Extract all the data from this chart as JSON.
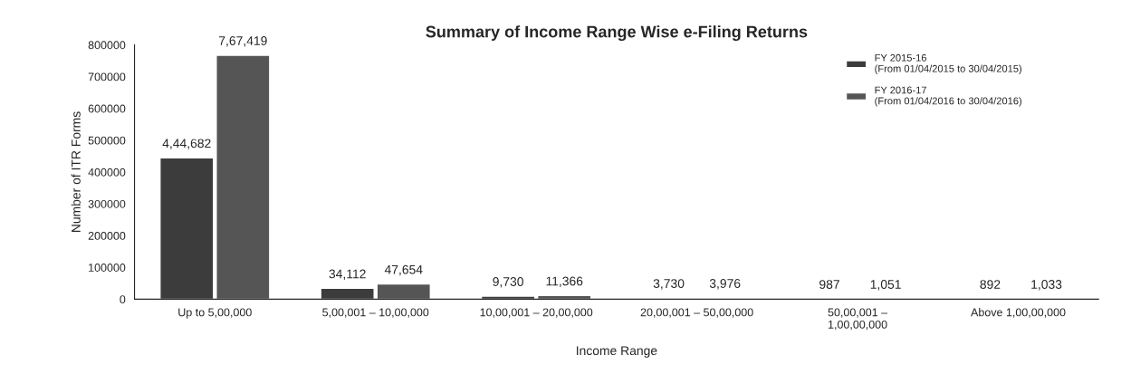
{
  "chart_data": {
    "type": "bar",
    "title": "Summary of Income Range Wise e-Filing Returns",
    "xlabel": "Income Range",
    "ylabel": "Number of ITR Forms",
    "categories": [
      "Up to 5,00,000",
      "5,00,001 – 10,00,000",
      "10,00,001 – 20,00,000",
      "20,00,001 – 50,00,000",
      "50,00,001 –\n1,00,00,000",
      "Above 1,00,00,000"
    ],
    "series": [
      {
        "name": "FY 2015-16\n(From 01/04/2015 to 30/04/2015)",
        "color": "#3c3c3c",
        "values": [
          444682,
          34112,
          9730,
          3730,
          987,
          892
        ],
        "value_labels": [
          "4,44,682",
          "34,112",
          "9,730",
          "3,730",
          "987",
          "892"
        ]
      },
      {
        "name": "FY 2016-17\n(From 01/04/2016 to 30/04/2016)",
        "color": "#555555",
        "values": [
          767419,
          47654,
          11366,
          3976,
          1051,
          1033
        ],
        "value_labels": [
          "7,67,419",
          "47,654",
          "11,366",
          "3,976",
          "1,051",
          "1,033"
        ]
      }
    ],
    "ylim": [
      0,
      800000
    ],
    "yticks": [
      0,
      100000,
      200000,
      300000,
      400000,
      500000,
      600000,
      700000,
      800000
    ],
    "grid": false,
    "legend": "top right"
  }
}
